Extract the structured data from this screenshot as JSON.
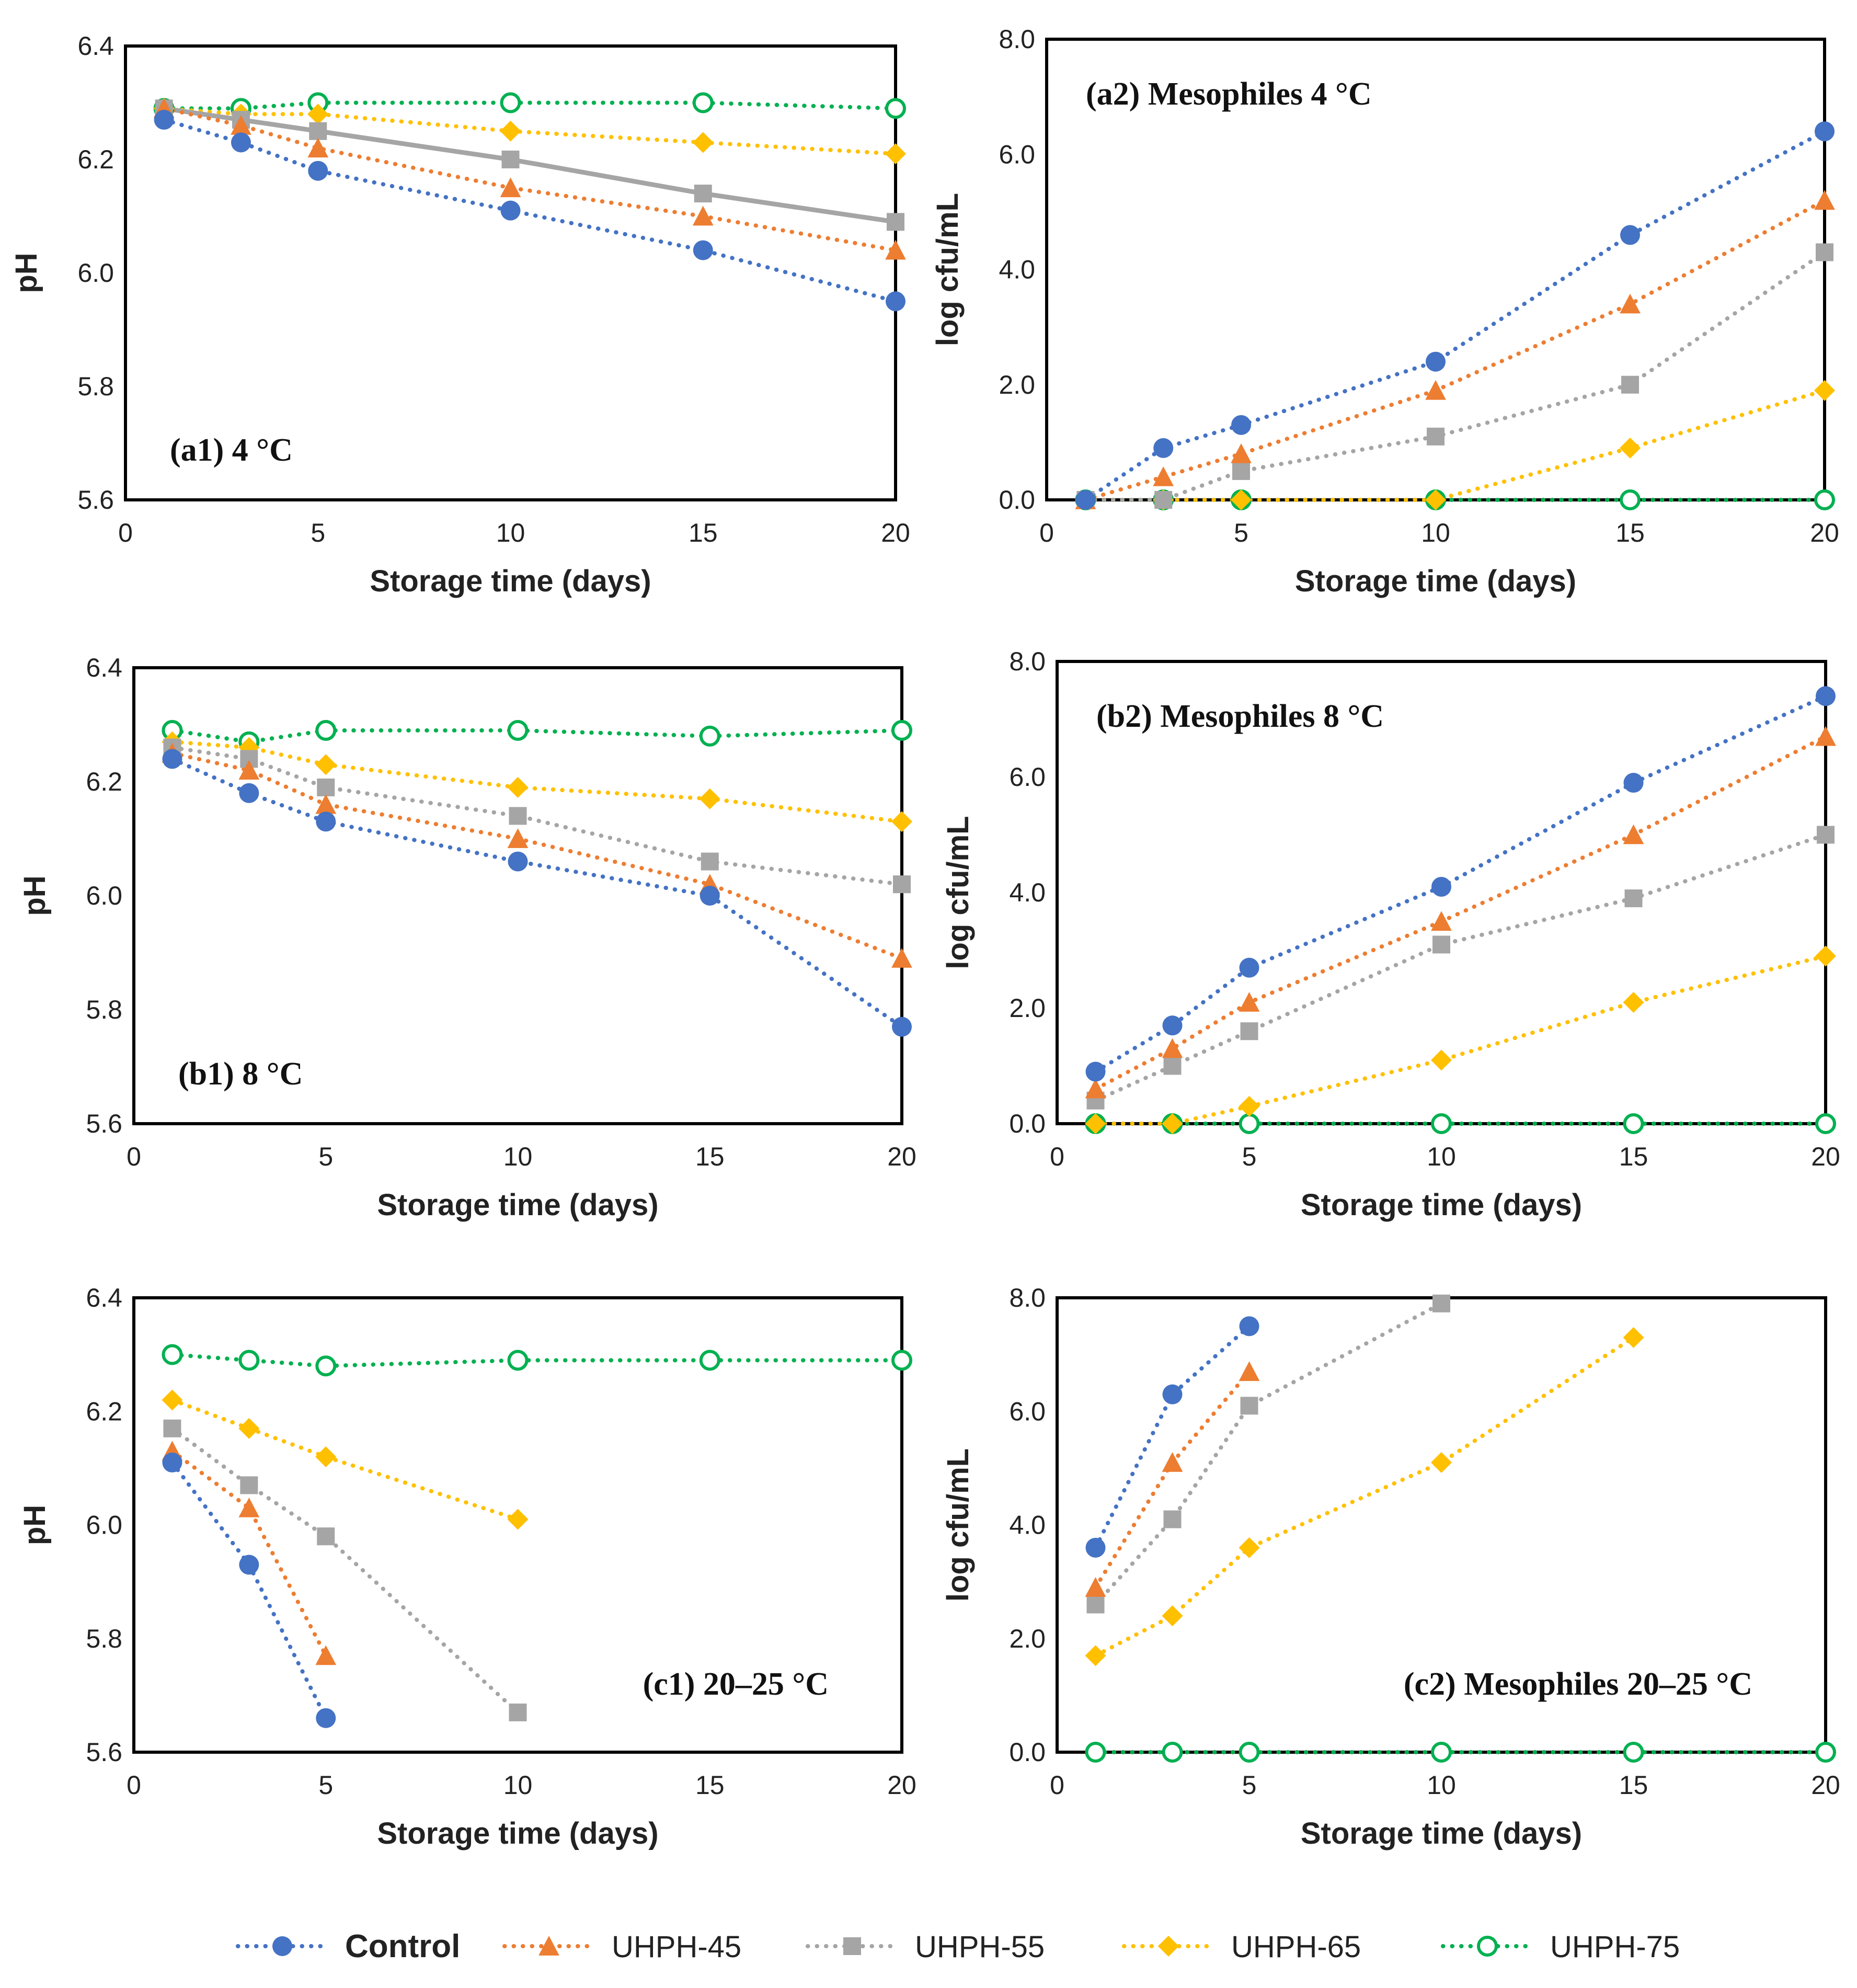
{
  "series_styles": [
    {
      "key": "control",
      "marker": "circle",
      "color": "#4472C4"
    },
    {
      "key": "uhph45",
      "marker": "triangle",
      "color": "#ED7D31"
    },
    {
      "key": "uhph55",
      "marker": "square",
      "color": "#A5A5A5"
    },
    {
      "key": "uhph65",
      "marker": "diamond",
      "color": "#FFC000"
    },
    {
      "key": "uhph75",
      "marker": "open-circle",
      "color": "#00B050"
    }
  ],
  "legend": {
    "items": [
      {
        "key": "control",
        "label": "Control"
      },
      {
        "key": "uhph45",
        "label": "UHPH-45"
      },
      {
        "key": "uhph55",
        "label": "UHPH-55"
      },
      {
        "key": "uhph65",
        "label": "UHPH-65"
      },
      {
        "key": "uhph75",
        "label": "UHPH-75"
      }
    ]
  },
  "chart_data": [
    {
      "id": "a1",
      "type": "line",
      "title": "(a1) 4 °C",
      "title_position": "bottom-left",
      "xlabel": "Storage time (days)",
      "ylabel": "pH",
      "xlim": [
        0,
        20
      ],
      "ylim": [
        5.6,
        6.4
      ],
      "xticks": [
        "0",
        "5",
        "10",
        "15",
        "20"
      ],
      "yticks": [
        "5.6",
        "5.8",
        "6.0",
        "6.2",
        "6.4"
      ],
      "series": [
        {
          "key": "control",
          "name": "Control",
          "x": [
            1,
            3,
            5,
            10,
            15,
            20
          ],
          "y": [
            6.27,
            6.23,
            6.18,
            6.11,
            6.04,
            5.95
          ]
        },
        {
          "key": "uhph45",
          "name": "UHPH-45",
          "x": [
            1,
            3,
            5,
            10,
            15,
            20
          ],
          "y": [
            6.29,
            6.26,
            6.22,
            6.15,
            6.1,
            6.04
          ]
        },
        {
          "key": "uhph55",
          "name": "UHPH-55",
          "x": [
            1,
            3,
            5,
            10,
            15,
            20
          ],
          "y": [
            6.29,
            6.27,
            6.25,
            6.2,
            6.14,
            6.09
          ],
          "solid": true
        },
        {
          "key": "uhph65",
          "name": "UHPH-65",
          "x": [
            1,
            3,
            5,
            10,
            15,
            20
          ],
          "y": [
            6.29,
            6.28,
            6.28,
            6.25,
            6.23,
            6.21
          ]
        },
        {
          "key": "uhph75",
          "name": "UHPH-75",
          "x": [
            1,
            3,
            5,
            10,
            15,
            20
          ],
          "y": [
            6.29,
            6.29,
            6.3,
            6.3,
            6.3,
            6.29
          ]
        }
      ]
    },
    {
      "id": "a2",
      "type": "line",
      "title": "(a2) Mesophiles 4 °C",
      "title_position": "top-left",
      "xlabel": "Storage time (days)",
      "ylabel": "log cfu/mL",
      "xlim": [
        0,
        20
      ],
      "ylim": [
        0,
        8
      ],
      "xticks": [
        "0",
        "5",
        "10",
        "15",
        "20"
      ],
      "yticks": [
        "0.0",
        "2.0",
        "4.0",
        "6.0",
        "8.0"
      ],
      "series": [
        {
          "key": "control",
          "name": "Control",
          "x": [
            1,
            3,
            5,
            10,
            15,
            20
          ],
          "y": [
            0.0,
            0.9,
            1.3,
            2.4,
            4.6,
            6.4
          ]
        },
        {
          "key": "uhph45",
          "name": "UHPH-45",
          "x": [
            1,
            3,
            5,
            10,
            15,
            20
          ],
          "y": [
            0.0,
            0.4,
            0.8,
            1.9,
            3.4,
            5.2
          ]
        },
        {
          "key": "uhph55",
          "name": "UHPH-55",
          "x": [
            1,
            3,
            5,
            10,
            15,
            20
          ],
          "y": [
            0.0,
            0.0,
            0.5,
            1.1,
            2.0,
            4.3
          ]
        },
        {
          "key": "uhph65",
          "name": "UHPH-65",
          "x": [
            1,
            3,
            5,
            10,
            15,
            20
          ],
          "y": [
            0.0,
            0.0,
            0.0,
            0.0,
            0.9,
            1.9
          ]
        },
        {
          "key": "uhph75",
          "name": "UHPH-75",
          "x": [
            1,
            3,
            5,
            10,
            15,
            20
          ],
          "y": [
            0.0,
            0.0,
            0.0,
            0.0,
            0.0,
            0.0
          ]
        }
      ]
    },
    {
      "id": "b1",
      "type": "line",
      "title": "(b1) 8 °C",
      "title_position": "bottom-left",
      "xlabel": "Storage time (days)",
      "ylabel": "pH",
      "xlim": [
        0,
        20
      ],
      "ylim": [
        5.6,
        6.4
      ],
      "xticks": [
        "0",
        "5",
        "10",
        "15",
        "20"
      ],
      "yticks": [
        "5.6",
        "5.8",
        "6.0",
        "6.2",
        "6.4"
      ],
      "series": [
        {
          "key": "control",
          "name": "Control",
          "x": [
            1,
            3,
            5,
            10,
            15,
            20
          ],
          "y": [
            6.24,
            6.18,
            6.13,
            6.06,
            6.0,
            5.77
          ]
        },
        {
          "key": "uhph45",
          "name": "UHPH-45",
          "x": [
            1,
            3,
            5,
            10,
            15,
            20
          ],
          "y": [
            6.25,
            6.22,
            6.16,
            6.1,
            6.02,
            5.89
          ]
        },
        {
          "key": "uhph55",
          "name": "UHPH-55",
          "x": [
            1,
            3,
            5,
            10,
            15,
            20
          ],
          "y": [
            6.26,
            6.24,
            6.19,
            6.14,
            6.06,
            6.02
          ]
        },
        {
          "key": "uhph65",
          "name": "UHPH-65",
          "x": [
            1,
            3,
            5,
            10,
            15,
            20
          ],
          "y": [
            6.27,
            6.26,
            6.23,
            6.19,
            6.17,
            6.13
          ]
        },
        {
          "key": "uhph75",
          "name": "UHPH-75",
          "x": [
            1,
            3,
            5,
            10,
            15,
            20
          ],
          "y": [
            6.29,
            6.27,
            6.29,
            6.29,
            6.28,
            6.29
          ]
        }
      ]
    },
    {
      "id": "b2",
      "type": "line",
      "title": "(b2) Mesophiles 8 °C",
      "title_position": "top-left",
      "xlabel": "Storage time (days)",
      "ylabel": "log cfu/mL",
      "xlim": [
        0,
        20
      ],
      "ylim": [
        0,
        8
      ],
      "xticks": [
        "0",
        "5",
        "10",
        "15",
        "20"
      ],
      "yticks": [
        "0.0",
        "2.0",
        "4.0",
        "6.0",
        "8.0"
      ],
      "series": [
        {
          "key": "control",
          "name": "Control",
          "x": [
            1,
            3,
            5,
            10,
            15,
            20
          ],
          "y": [
            0.9,
            1.7,
            2.7,
            4.1,
            5.9,
            7.4
          ]
        },
        {
          "key": "uhph45",
          "name": "UHPH-45",
          "x": [
            1,
            3,
            5,
            10,
            15,
            20
          ],
          "y": [
            0.6,
            1.3,
            2.1,
            3.5,
            5.0,
            6.7
          ]
        },
        {
          "key": "uhph55",
          "name": "UHPH-55",
          "x": [
            1,
            3,
            5,
            10,
            15,
            20
          ],
          "y": [
            0.4,
            1.0,
            1.6,
            3.1,
            3.9,
            5.0
          ]
        },
        {
          "key": "uhph65",
          "name": "UHPH-65",
          "x": [
            1,
            3,
            5,
            10,
            15,
            20
          ],
          "y": [
            0.0,
            0.0,
            0.3,
            1.1,
            2.1,
            2.9
          ]
        },
        {
          "key": "uhph75",
          "name": "UHPH-75",
          "x": [
            1,
            3,
            5,
            10,
            15,
            20
          ],
          "y": [
            0.0,
            0.0,
            0.0,
            0.0,
            0.0,
            0.0
          ]
        }
      ]
    },
    {
      "id": "c1",
      "type": "line",
      "title": "(c1) 20–25 °C",
      "title_position": "bottom-right",
      "xlabel": "Storage time (days)",
      "ylabel": "pH",
      "xlim": [
        0,
        20
      ],
      "ylim": [
        5.6,
        6.4
      ],
      "xticks": [
        "0",
        "5",
        "10",
        "15",
        "20"
      ],
      "yticks": [
        "5.6",
        "5.8",
        "6.0",
        "6.2",
        "6.4"
      ],
      "series": [
        {
          "key": "control",
          "name": "Control",
          "x": [
            1,
            3,
            5
          ],
          "y": [
            6.11,
            5.93,
            5.66
          ]
        },
        {
          "key": "uhph45",
          "name": "UHPH-45",
          "x": [
            1,
            3,
            5
          ],
          "y": [
            6.13,
            6.03,
            5.77
          ]
        },
        {
          "key": "uhph55",
          "name": "UHPH-55",
          "x": [
            1,
            3,
            5,
            10
          ],
          "y": [
            6.17,
            6.07,
            5.98,
            5.67
          ]
        },
        {
          "key": "uhph65",
          "name": "UHPH-65",
          "x": [
            1,
            3,
            5,
            10
          ],
          "y": [
            6.22,
            6.17,
            6.12,
            6.01
          ]
        },
        {
          "key": "uhph75",
          "name": "UHPH-75",
          "x": [
            1,
            3,
            5,
            10,
            15,
            20
          ],
          "y": [
            6.3,
            6.29,
            6.28,
            6.29,
            6.29,
            6.29
          ]
        }
      ]
    },
    {
      "id": "c2",
      "type": "line",
      "title": "(c2) Mesophiles 20–25 °C",
      "title_position": "bottom-right",
      "xlabel": "Storage time (days)",
      "ylabel": "log cfu/mL",
      "xlim": [
        0,
        20
      ],
      "ylim": [
        0,
        8
      ],
      "xticks": [
        "0",
        "5",
        "10",
        "15",
        "20"
      ],
      "yticks": [
        "0.0",
        "2.0",
        "4.0",
        "6.0",
        "8.0"
      ],
      "series": [
        {
          "key": "control",
          "name": "Control",
          "x": [
            1,
            3,
            5
          ],
          "y": [
            3.6,
            6.3,
            7.5
          ]
        },
        {
          "key": "uhph45",
          "name": "UHPH-45",
          "x": [
            1,
            3,
            5
          ],
          "y": [
            2.9,
            5.1,
            6.7
          ]
        },
        {
          "key": "uhph55",
          "name": "UHPH-55",
          "x": [
            1,
            3,
            5,
            10
          ],
          "y": [
            2.6,
            4.1,
            6.1,
            7.9
          ]
        },
        {
          "key": "uhph65",
          "name": "UHPH-65",
          "x": [
            1,
            3,
            5,
            10,
            15
          ],
          "y": [
            1.7,
            2.4,
            3.6,
            5.1,
            7.3
          ]
        },
        {
          "key": "uhph75",
          "name": "UHPH-75",
          "x": [
            1,
            3,
            5,
            10,
            15,
            20
          ],
          "y": [
            0.0,
            0.0,
            0.0,
            0.0,
            0.0,
            0.0
          ]
        }
      ]
    }
  ]
}
